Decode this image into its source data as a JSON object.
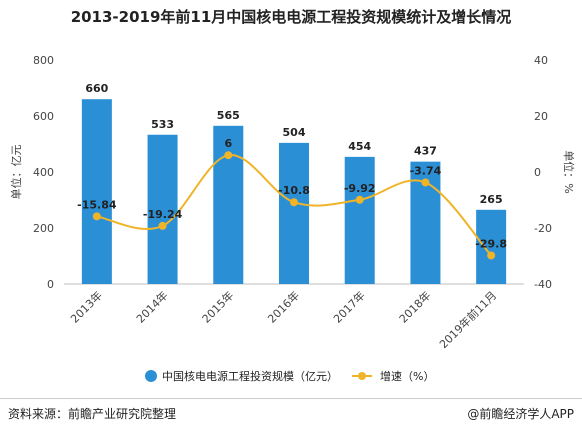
{
  "title": "2013-2019年前11月中国核电电源工程投资规模统计及增长情况",
  "chart_data": {
    "type": "bar+line",
    "categories": [
      "2013年",
      "2014年",
      "2015年",
      "2016年",
      "2017年",
      "2018年",
      "2019年前11月"
    ],
    "series": [
      {
        "name": "中国核电电源工程投资规模（亿元）",
        "type": "bar",
        "axis": "left",
        "color": "#2b8fd6",
        "values": [
          660,
          533,
          565,
          504,
          454,
          437,
          265
        ],
        "labels": [
          "660",
          "533",
          "565",
          "504",
          "454",
          "437",
          "265"
        ]
      },
      {
        "name": "增速（%）",
        "type": "line",
        "axis": "right",
        "color": "#f0b429",
        "values": [
          -15.84,
          -19.24,
          6,
          -10.8,
          -9.92,
          -3.74,
          -29.8
        ],
        "labels": [
          "-15.84",
          "-19.24",
          "6",
          "-10.8",
          "-9.92",
          "-3.74",
          "-29.8"
        ]
      }
    ],
    "y_left": {
      "label": "单位：亿元",
      "min": 0,
      "max": 800,
      "ticks": [
        0,
        200,
        400,
        600,
        800
      ]
    },
    "y_right": {
      "label": "单位：%",
      "min": -40,
      "max": 40,
      "ticks": [
        -40,
        -20,
        0,
        20,
        40
      ]
    },
    "grid": false,
    "legend_position": "bottom"
  },
  "footer": {
    "source": "资料来源：前瞻产业研究院整理",
    "credit": "@前瞻经济学人APP"
  }
}
